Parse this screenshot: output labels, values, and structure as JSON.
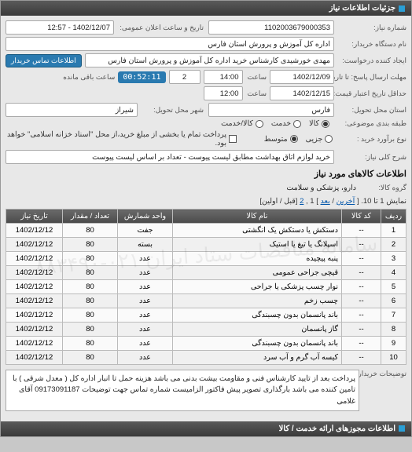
{
  "header": {
    "title": "جزئیات اطلاعات نیاز"
  },
  "form": {
    "req_no_lbl": "شماره نیاز:",
    "req_no": "1102003679000353",
    "ann_dt_lbl": "تاریخ و ساعت اعلان عمومی:",
    "ann_dt": "1402/12/07 - 12:57",
    "buyer_org_lbl": "نام دستگاه خریدار:",
    "buyer_org": "اداره کل آموزش و پرورش استان فارس",
    "creator_lbl": "ایجاد کننده درخواست:",
    "creator": "مهدی خورشیدی کارشناس خرید اداره کل آموزش و پرورش استان فارس",
    "contact_btn": "اطلاعات تماس خریدار",
    "deadline_lbl": "مهلت ارسال پاسخ: تا تاریخ:",
    "deadline_date": "1402/12/09",
    "time_lbl": "ساعت",
    "deadline_time": "14:00",
    "days_remain": "2",
    "countdown": "00:52:11",
    "days_remain_lbl": "ساعت باقی مانده",
    "valid_lbl": "حداقل تاریخ اعتبار قیمت: تا تاریخ:",
    "valid_date": "1402/12/15",
    "valid_time": "12:00",
    "province_lbl": "استان محل تحویل:",
    "province": "فارس",
    "city_lbl": "شهر محل تحویل:",
    "city": "شیراز",
    "class_lbl": "طبقه بندی موضوعی:",
    "class_opts": {
      "goods": "کالا",
      "service": "خدمت",
      "both": "کالا/خدمت"
    },
    "buy_type_lbl": "نوع برآورد خرید :",
    "buy_type_opts": {
      "small": "جزیی",
      "medium": "متوسط"
    },
    "pay_note": "پرداخت تمام یا بخشی از مبلغ خرید،از محل \"اسناد خزانه اسلامی\" خواهد بود.",
    "desc_lbl": "شرح کلی نیاز:",
    "desc": "خرید لوازم اتاق بهداشت مطابق لیست پیوست - تعداد بر اساس لیست پیوست"
  },
  "goods": {
    "section_title": "اطلاعات کالاهای مورد نیاز",
    "group_lbl": "گروه کالا:",
    "group_val": "دارو، پزشکی و سلامت",
    "pager": {
      "prefix": "نمایش 1 تا 10. [",
      "last": "آخرین",
      "sep": " / ",
      "next": "بعد",
      "mid": "] 1 ,",
      "p2": "2",
      "suffix": " [قبل / اولین]"
    },
    "cols": {
      "row": "ردیف",
      "code": "کد کالا",
      "name": "نام کالا",
      "unit": "واحد شمارش",
      "qty": "تعداد / مقدار",
      "date": "تاریخ نیاز"
    },
    "rows": [
      {
        "n": "1",
        "code": "--",
        "name": "دستکش یا دستکش یک انگشتی",
        "unit": "جفت",
        "qty": "80",
        "date": "1402/12/12"
      },
      {
        "n": "2",
        "code": "--",
        "name": "اسپلانگ یا تیغ یا استیک",
        "unit": "بسته",
        "qty": "80",
        "date": "1402/12/12"
      },
      {
        "n": "3",
        "code": "--",
        "name": "پنبه پیچیده",
        "unit": "عدد",
        "qty": "80",
        "date": "1402/12/12"
      },
      {
        "n": "4",
        "code": "--",
        "name": "قیچی جراحی عمومی",
        "unit": "عدد",
        "qty": "80",
        "date": "1402/12/12"
      },
      {
        "n": "5",
        "code": "--",
        "name": "نوار چسب پزشکی یا جراحی",
        "unit": "عدد",
        "qty": "80",
        "date": "1402/12/12"
      },
      {
        "n": "6",
        "code": "--",
        "name": "چسب زخم",
        "unit": "عدد",
        "qty": "80",
        "date": "1402/12/12"
      },
      {
        "n": "7",
        "code": "--",
        "name": "باند پانسمان بدون چسبندگی",
        "unit": "عدد",
        "qty": "80",
        "date": "1402/12/12"
      },
      {
        "n": "8",
        "code": "--",
        "name": "گاز پانسمان",
        "unit": "عدد",
        "qty": "80",
        "date": "1402/12/12"
      },
      {
        "n": "9",
        "code": "--",
        "name": "باند پانسمان بدون چسبندگی",
        "unit": "عدد",
        "qty": "80",
        "date": "1402/12/12"
      },
      {
        "n": "10",
        "code": "--",
        "name": "کیسه آب گرم و آب سرد",
        "unit": "عدد",
        "qty": "80",
        "date": "1402/12/12"
      }
    ]
  },
  "buyer_desc": {
    "lbl": "توضیحات خریدار:",
    "text": "پرداخت بعد از تایید کارشناس فنی و مقاومت بیشت بدنی می باشد هزینه حمل تا انبار اداره کل ( معدل شرقی ) با تامین کننده می باشد بارگذاری تصویر پیش فاکتور الزامیست شماره تماس جهت توضیحات 09173091187 آقای غلامی"
  },
  "footer_title": "اطلاعات مجوزهای ارائه خدمت / کالا",
  "watermark": "سامانه مناقصات ستاد ایران\n۰۲۱-۸۸۳۴۹۰",
  "colors": {
    "header_bg": "#4a4a4a",
    "accent": "#2a7ab0",
    "panel_bg": "#e8e8e8",
    "border": "#aaaaaa"
  }
}
